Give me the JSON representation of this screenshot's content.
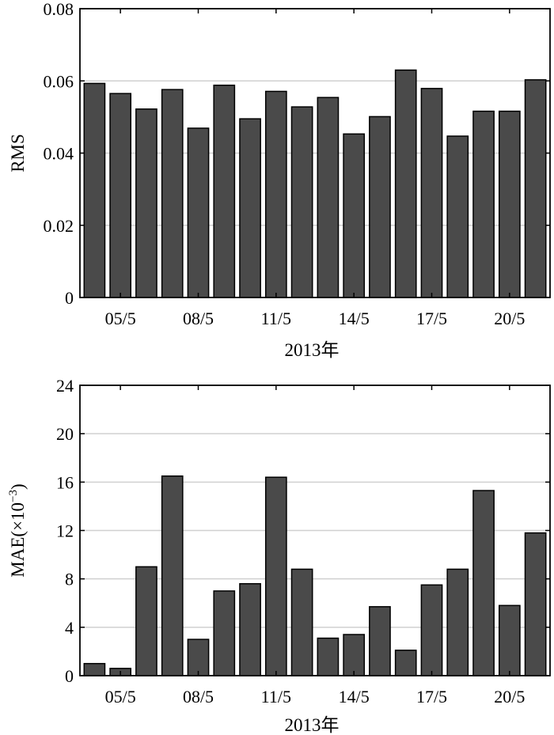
{
  "chart_data": [
    {
      "type": "bar",
      "xlabel": "2013年",
      "ylabel": "RMS",
      "ylim": [
        0,
        0.08
      ],
      "yticks": [
        "0",
        "0.02",
        "0.04",
        "0.06",
        "0.08"
      ],
      "ytick_values": [
        0,
        0.02,
        0.04,
        0.06,
        0.08
      ],
      "xtick_labels": [
        "05/5",
        "08/5",
        "11/5",
        "14/5",
        "17/5",
        "20/5"
      ],
      "xtick_bar_index": [
        1,
        4,
        7,
        10,
        13,
        16
      ],
      "grid": "horizontal",
      "values": [
        0.0593,
        0.0565,
        0.0522,
        0.0576,
        0.0469,
        0.0588,
        0.0495,
        0.0571,
        0.0528,
        0.0554,
        0.0453,
        0.0501,
        0.063,
        0.0579,
        0.0447,
        0.0516,
        0.0516,
        0.0603
      ]
    },
    {
      "type": "bar",
      "xlabel": "2013年",
      "ylabel": "MAE(×10",
      "ylabel_exponent": "−3",
      "ylabel_close": ")",
      "ylim": [
        0,
        24
      ],
      "yticks": [
        "0",
        "4",
        "8",
        "12",
        "16",
        "20",
        "24"
      ],
      "ytick_values": [
        0,
        4,
        8,
        12,
        16,
        20,
        24
      ],
      "xtick_labels": [
        "05/5",
        "08/5",
        "11/5",
        "14/5",
        "17/5",
        "20/5"
      ],
      "xtick_bar_index": [
        1,
        4,
        7,
        10,
        13,
        16
      ],
      "grid": "horizontal",
      "values": [
        1.0,
        0.6,
        9.0,
        16.5,
        3.0,
        7.0,
        7.6,
        16.4,
        8.8,
        3.1,
        3.4,
        5.7,
        2.1,
        7.5,
        8.8,
        15.3,
        5.8,
        11.8
      ]
    }
  ]
}
